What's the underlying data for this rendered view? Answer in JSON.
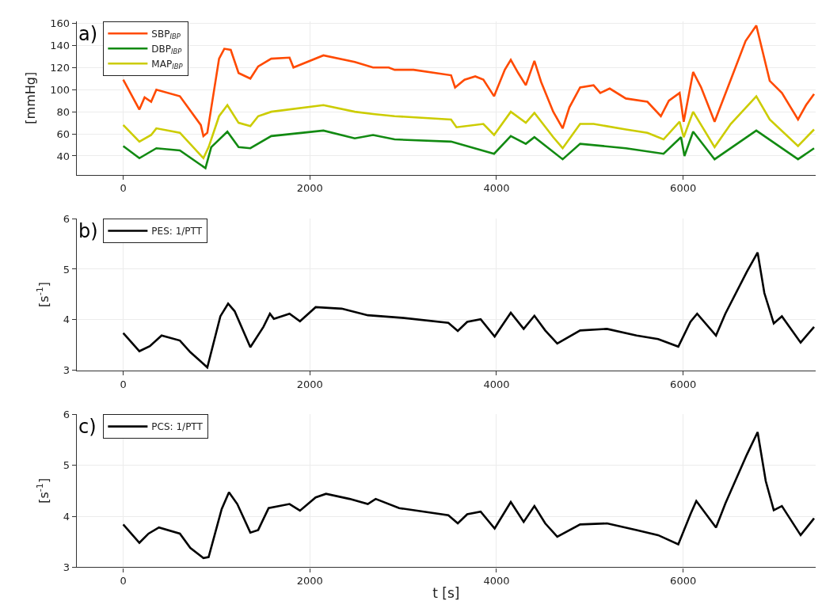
{
  "chart_data": [
    {
      "type": "line",
      "ylabel": "[mmHg]",
      "annotations": [
        "a)"
      ],
      "xlim": [
        -500,
        7420
      ],
      "xticks": [
        0,
        2000,
        4000,
        6000
      ],
      "ylim": [
        23,
        162
      ],
      "yticks": [
        40,
        60,
        80,
        100,
        120,
        140,
        160
      ],
      "grid": true,
      "legend": "top left",
      "series": [
        {
          "name": "SBP$_{IBP}$",
          "color": "#ff4a00",
          "x": [
            0,
            173,
            229,
            299,
            355,
            607,
            831,
            859,
            901,
            1027,
            1083,
            1152,
            1236,
            1362,
            1446,
            1586,
            1782,
            1824,
            2145,
            2481,
            2677,
            2845,
            2908,
            3110,
            3513,
            3556,
            3657,
            3772,
            3859,
            3974,
            4089,
            4153,
            4233,
            4314,
            4406,
            4478,
            4608,
            4709,
            4781,
            4896,
            5040,
            5112,
            5213,
            5386,
            5617,
            5761,
            5847,
            5962,
            6006,
            6107,
            6193,
            6337,
            6510,
            6669,
            6784,
            6928,
            7058,
            7231,
            7317,
            7403
          ],
          "values": [
            109,
            82,
            93,
            89,
            100,
            94,
            68,
            58,
            61,
            128,
            137,
            136,
            115,
            110,
            121,
            128,
            129,
            120,
            131,
            125,
            120,
            120,
            118,
            118,
            113,
            102,
            109,
            112,
            109,
            94,
            118,
            127,
            115,
            104,
            126,
            107,
            80,
            65,
            84,
            102,
            104,
            97,
            101,
            92,
            89,
            76,
            90,
            97,
            71,
            116,
            102,
            71,
            109,
            144,
            158,
            108,
            97,
            73,
            86,
            96
          ]
        },
        {
          "name": "DBP$_{IBP}$",
          "color": "#128a12",
          "x": [
            0,
            173,
            355,
            607,
            881,
            943,
            1116,
            1236,
            1362,
            1586,
            2145,
            2481,
            2677,
            2908,
            3513,
            3974,
            4153,
            4314,
            4406,
            4709,
            4896,
            5386,
            5790,
            5977,
            6014,
            6107,
            6337,
            6784,
            7231,
            7403
          ],
          "values": [
            49,
            38,
            47,
            45,
            29,
            48,
            62,
            48,
            47,
            58,
            63,
            56,
            59,
            55,
            53,
            42,
            58,
            51,
            57,
            37,
            51,
            47,
            42,
            57,
            40,
            62,
            37,
            63,
            37,
            47
          ]
        },
        {
          "name": "MAP$_{IBP}$",
          "color": "#cccc00",
          "x": [
            0,
            173,
            299,
            355,
            607,
            859,
            915,
            1027,
            1116,
            1236,
            1362,
            1446,
            1586,
            2145,
            2481,
            2677,
            2908,
            3513,
            3571,
            3859,
            3974,
            4153,
            4314,
            4406,
            4608,
            4709,
            4896,
            5040,
            5386,
            5617,
            5790,
            5962,
            6006,
            6107,
            6337,
            6510,
            6784,
            6928,
            7231,
            7403
          ],
          "values": [
            68,
            53,
            59,
            65,
            61,
            38,
            48,
            76,
            86,
            70,
            67,
            76,
            80,
            86,
            80,
            78,
            76,
            73,
            66,
            69,
            59,
            80,
            70,
            79,
            57,
            47,
            69,
            69,
            64,
            61,
            55,
            71,
            57,
            80,
            48,
            69,
            94,
            73,
            49,
            64
          ]
        }
      ]
    },
    {
      "type": "line",
      "ylabel": "[s$^{-1}$]",
      "annotations": [
        "b)"
      ],
      "xlim": [
        -500,
        7420
      ],
      "xticks": [
        0,
        2000,
        4000,
        6000
      ],
      "ylim": [
        3,
        6
      ],
      "yticks": [
        3,
        4,
        5,
        6
      ],
      "grid": true,
      "legend": "top left",
      "series": [
        {
          "name": "PES: 1/PTT",
          "color": "#000000",
          "x": [
            0,
            173,
            285,
            411,
            607,
            719,
            901,
            1041,
            1124,
            1194,
            1362,
            1502,
            1572,
            1614,
            1782,
            1894,
            2062,
            2341,
            2621,
            2985,
            3484,
            3585,
            3686,
            3830,
            3980,
            4153,
            4291,
            4406,
            4522,
            4651,
            4896,
            5184,
            5501,
            5732,
            5948,
            6078,
            6150,
            6352,
            6452,
            6683,
            6798,
            6870,
            6971,
            7058,
            7259,
            7403
          ],
          "values": [
            3.74,
            3.38,
            3.48,
            3.69,
            3.59,
            3.36,
            3.06,
            4.07,
            4.32,
            4.17,
            3.46,
            3.86,
            4.12,
            4.02,
            4.12,
            3.97,
            4.25,
            4.22,
            4.09,
            4.04,
            3.94,
            3.78,
            3.96,
            4.01,
            3.67,
            4.14,
            3.82,
            4.08,
            3.79,
            3.53,
            3.79,
            3.82,
            3.69,
            3.62,
            3.47,
            3.96,
            4.12,
            3.69,
            4.12,
            4.95,
            5.33,
            4.53,
            3.93,
            4.07,
            3.55,
            3.86
          ]
        }
      ]
    },
    {
      "type": "line",
      "xlabel": "t [s]",
      "ylabel": "[s$^{-1}$]",
      "annotations": [
        "c)"
      ],
      "xlim": [
        -500,
        7420
      ],
      "xticks": [
        0,
        2000,
        4000,
        6000
      ],
      "ylim": [
        3,
        6
      ],
      "yticks": [
        3,
        4,
        5,
        6
      ],
      "grid": true,
      "legend": "top left",
      "series": [
        {
          "name": "PCS: 1/PTT",
          "color": "#000000",
          "x": [
            0,
            173,
            271,
            383,
            607,
            719,
            859,
            915,
            1055,
            1133,
            1222,
            1362,
            1446,
            1558,
            1782,
            1894,
            2062,
            2173,
            2425,
            2621,
            2705,
            2957,
            3484,
            3585,
            3686,
            3830,
            3980,
            4153,
            4291,
            4406,
            4522,
            4651,
            4896,
            5184,
            5501,
            5732,
            5948,
            6078,
            6141,
            6352,
            6452,
            6683,
            6798,
            6885,
            6971,
            7058,
            7259,
            7403
          ],
          "values": [
            3.84,
            3.48,
            3.66,
            3.78,
            3.66,
            3.38,
            3.18,
            3.2,
            4.14,
            4.47,
            4.24,
            3.68,
            3.73,
            4.16,
            4.24,
            4.11,
            4.37,
            4.44,
            4.34,
            4.24,
            4.34,
            4.16,
            4.02,
            3.86,
            4.04,
            4.09,
            3.76,
            4.28,
            3.89,
            4.2,
            3.86,
            3.6,
            3.84,
            3.86,
            3.73,
            3.63,
            3.45,
            4.04,
            4.3,
            3.78,
            4.25,
            5.21,
            5.65,
            4.69,
            4.12,
            4.2,
            3.63,
            3.96
          ]
        }
      ]
    }
  ]
}
